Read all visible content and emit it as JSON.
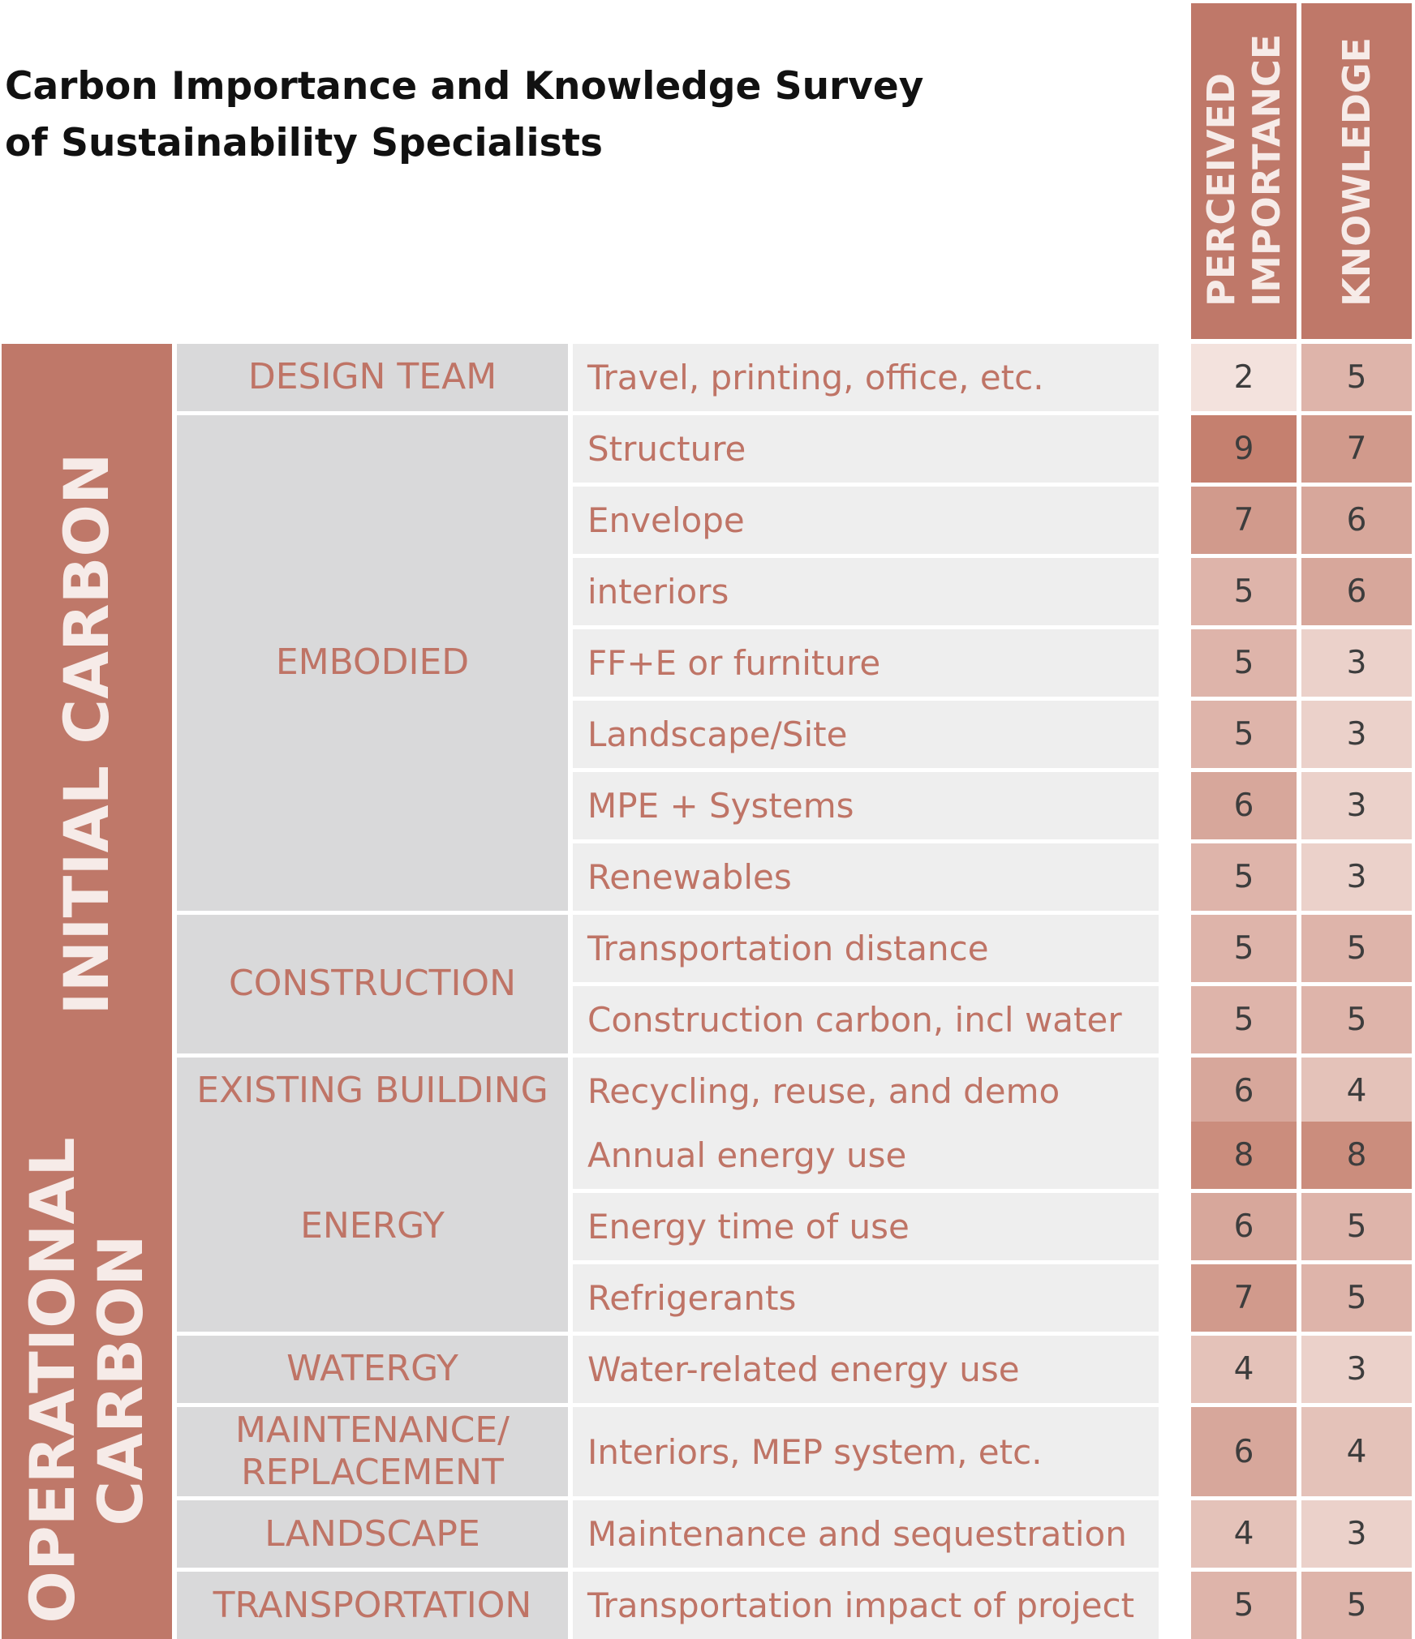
{
  "title_lines": [
    "Carbon Importance and Knowledge Survey",
    "of Sustainability Specialists"
  ],
  "chart_data": {
    "type": "table",
    "title": "Carbon Importance and Knowledge Survey of Sustainability Specialists",
    "columns": [
      {
        "key": "importance",
        "lines": [
          "PERCEIVED",
          "IMPORTANCE"
        ]
      },
      {
        "key": "knowledge",
        "lines": [
          "KNOWLEDGE"
        ]
      }
    ],
    "groups": [
      {
        "lines": [
          "INITIAL CARBON"
        ],
        "categories": [
          {
            "lines": [
              "DESIGN TEAM"
            ],
            "items": [
              {
                "label": "Travel, printing, office, etc.",
                "importance": 2,
                "knowledge": 5
              }
            ]
          },
          {
            "lines": [
              "EMBODIED"
            ],
            "items": [
              {
                "label": "Structure",
                "importance": 9,
                "knowledge": 7
              },
              {
                "label": "Envelope",
                "importance": 7,
                "knowledge": 6
              },
              {
                "label": "interiors",
                "importance": 5,
                "knowledge": 6
              },
              {
                "label": "FF+E or furniture",
                "importance": 5,
                "knowledge": 3
              },
              {
                "label": "Landscape/Site",
                "importance": 5,
                "knowledge": 3
              },
              {
                "label": "MPE + Systems",
                "importance": 6,
                "knowledge": 3
              },
              {
                "label": "Renewables",
                "importance": 5,
                "knowledge": 3
              }
            ]
          },
          {
            "lines": [
              "CONSTRUCTION"
            ],
            "items": [
              {
                "label": "Transportation distance",
                "importance": 5,
                "knowledge": 5
              },
              {
                "label": "Construction carbon, incl water",
                "importance": 5,
                "knowledge": 5
              }
            ]
          },
          {
            "lines": [
              "EXISTING BUILDING"
            ],
            "items": [
              {
                "label": "Recycling, reuse, and demo",
                "importance": 6,
                "knowledge": 4
              }
            ]
          }
        ]
      },
      {
        "lines": [
          "OPERATIONAL",
          "CARBON"
        ],
        "categories": [
          {
            "lines": [
              "ENERGY"
            ],
            "items": [
              {
                "label": "Annual energy use",
                "importance": 8,
                "knowledge": 8
              },
              {
                "label": "Energy time of use",
                "importance": 6,
                "knowledge": 5
              },
              {
                "label": "Refrigerants",
                "importance": 7,
                "knowledge": 5
              }
            ]
          },
          {
            "lines": [
              "WATERGY"
            ],
            "items": [
              {
                "label": "Water-related energy use",
                "importance": 4,
                "knowledge": 3
              }
            ]
          },
          {
            "lines": [
              "MAINTENANCE/",
              "REPLACEMENT"
            ],
            "items": [
              {
                "label": "Interiors, MEP system, etc.",
                "importance": 6,
                "knowledge": 4
              }
            ]
          },
          {
            "lines": [
              "LANDSCAPE"
            ],
            "items": [
              {
                "label": "Maintenance and sequestration",
                "importance": 4,
                "knowledge": 3
              }
            ]
          },
          {
            "lines": [
              "TRANSPORTATION"
            ],
            "items": [
              {
                "label": "Transportation impact of project",
                "importance": 5,
                "knowledge": 5
              }
            ]
          }
        ]
      }
    ],
    "color_scale": {
      "low": "#f3e2dd",
      "high": "#c5806f",
      "min_value": 2,
      "max_value": 9
    },
    "colors": {
      "header": "#bf7869",
      "group": "#bf7869",
      "category_bg": "#d9d9da",
      "item_bg": "#eeeeee",
      "label_text": "#bf7466",
      "value_text": "#3d3d3d"
    }
  }
}
